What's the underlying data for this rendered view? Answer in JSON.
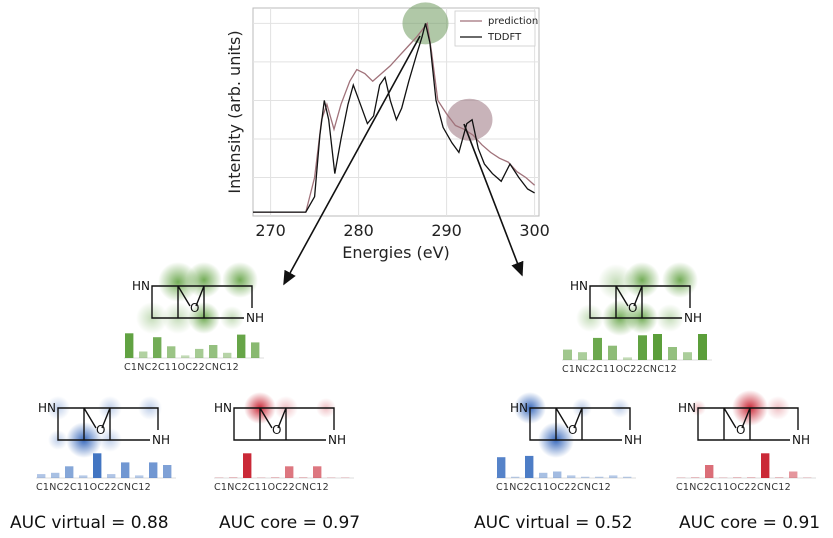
{
  "chart_data": {
    "type": "line",
    "xlabel": "Energies (eV)",
    "ylabel": "Intensity (arb. units)",
    "xlim": [
      268,
      300.5
    ],
    "ylim": [
      0,
      1.08
    ],
    "x_ticks": [
      "270",
      "280",
      "290",
      "300"
    ],
    "grid": true,
    "legend_position": "top-right",
    "series": [
      {
        "name": "prediction",
        "color": "#a0727a",
        "points": [
          [
            268,
            0.02
          ],
          [
            274,
            0.02
          ],
          [
            275,
            0.2
          ],
          [
            275.8,
            0.5
          ],
          [
            276.4,
            0.58
          ],
          [
            277.2,
            0.45
          ],
          [
            278,
            0.58
          ],
          [
            279,
            0.7
          ],
          [
            279.8,
            0.76
          ],
          [
            280.7,
            0.74
          ],
          [
            281.6,
            0.7
          ],
          [
            282.6,
            0.74
          ],
          [
            283.6,
            0.78
          ],
          [
            284.6,
            0.83
          ],
          [
            285.6,
            0.88
          ],
          [
            286.6,
            0.93
          ],
          [
            287.3,
            0.97
          ],
          [
            287.8,
            1.0
          ],
          [
            288.3,
            0.85
          ],
          [
            289,
            0.6
          ],
          [
            290,
            0.53
          ],
          [
            291,
            0.47
          ],
          [
            292,
            0.45
          ],
          [
            293,
            0.42
          ],
          [
            294,
            0.37
          ],
          [
            295,
            0.33
          ],
          [
            296,
            0.3
          ],
          [
            297,
            0.28
          ],
          [
            298,
            0.23
          ],
          [
            299,
            0.2
          ],
          [
            300,
            0.16
          ]
        ]
      },
      {
        "name": "TDDFT",
        "color": "#111111",
        "points": [
          [
            268,
            0.02
          ],
          [
            274,
            0.02
          ],
          [
            275,
            0.1
          ],
          [
            275.6,
            0.42
          ],
          [
            276.1,
            0.6
          ],
          [
            276.6,
            0.5
          ],
          [
            277.3,
            0.22
          ],
          [
            278,
            0.4
          ],
          [
            278.8,
            0.58
          ],
          [
            279.4,
            0.68
          ],
          [
            280.2,
            0.58
          ],
          [
            281,
            0.48
          ],
          [
            281.7,
            0.52
          ],
          [
            282.4,
            0.68
          ],
          [
            283,
            0.72
          ],
          [
            283.6,
            0.6
          ],
          [
            284.3,
            0.5
          ],
          [
            284.9,
            0.56
          ],
          [
            285.7,
            0.7
          ],
          [
            286.6,
            0.84
          ],
          [
            287.2,
            0.93
          ],
          [
            287.6,
            1.0
          ],
          [
            288.1,
            0.9
          ],
          [
            288.8,
            0.6
          ],
          [
            289.6,
            0.46
          ],
          [
            290.6,
            0.38
          ],
          [
            291.4,
            0.33
          ],
          [
            292.3,
            0.48
          ],
          [
            292.9,
            0.5
          ],
          [
            293.6,
            0.35
          ],
          [
            294.3,
            0.27
          ],
          [
            295.2,
            0.22
          ],
          [
            296.2,
            0.18
          ],
          [
            297.2,
            0.27
          ],
          [
            298.2,
            0.2
          ],
          [
            299.2,
            0.14
          ],
          [
            300,
            0.12
          ]
        ]
      }
    ],
    "highlights": [
      {
        "x": 287.6,
        "y": 1.0,
        "color": "#6f9a5f"
      },
      {
        "x": 292.6,
        "y": 0.5,
        "color": "#9a7480"
      }
    ]
  },
  "molecules": {
    "hn_label": "HN",
    "nh_label": "NH",
    "o_label": "O",
    "bar_labels": "C1NC2C11OC22CNC12"
  },
  "panels": {
    "left_virtual_label": "AUC virtual = 0.88",
    "left_core_label": "AUC core = 0.97",
    "right_virtual_label": "AUC virtual = 0.52",
    "right_core_label": "AUC core = 0.91"
  },
  "colors": {
    "green": "#5b9e3a",
    "blue": "#3a6fc0",
    "red": "#c8202f"
  }
}
